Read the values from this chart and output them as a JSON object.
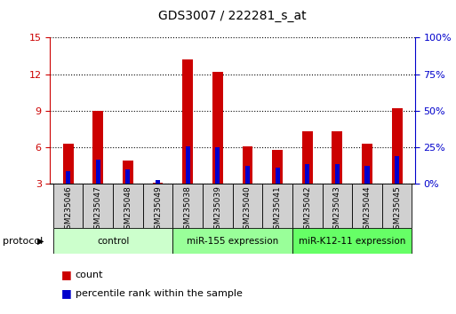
{
  "title": "GDS3007 / 222281_s_at",
  "samples": [
    "GSM235046",
    "GSM235047",
    "GSM235048",
    "GSM235049",
    "GSM235038",
    "GSM235039",
    "GSM235040",
    "GSM235041",
    "GSM235042",
    "GSM235043",
    "GSM235044",
    "GSM235045"
  ],
  "red_values": [
    6.3,
    9.0,
    4.9,
    3.1,
    13.2,
    12.2,
    6.1,
    5.8,
    7.3,
    7.3,
    6.3,
    9.2
  ],
  "blue_values": [
    4.0,
    5.0,
    4.2,
    3.3,
    6.1,
    6.0,
    4.5,
    4.3,
    4.6,
    4.6,
    4.5,
    5.3
  ],
  "red_color": "#cc0000",
  "blue_color": "#0000cc",
  "ylim_left": [
    3,
    15
  ],
  "ylim_right": [
    0,
    100
  ],
  "yticks_left": [
    3,
    6,
    9,
    12,
    15
  ],
  "yticks_right": [
    0,
    25,
    50,
    75,
    100
  ],
  "ytick_labels_right": [
    "0%",
    "25%",
    "50%",
    "75%",
    "100%"
  ],
  "group_labels": [
    "control",
    "miR-155 expression",
    "miR-K12-11 expression"
  ],
  "group_colors": [
    "#ccffcc",
    "#99ff99",
    "#66ff66"
  ],
  "group_boundaries": [
    0,
    4,
    8,
    12
  ],
  "bar_width": 0.35,
  "blue_bar_width": 0.15,
  "tick_color_left": "#cc0000",
  "tick_color_right": "#0000cc",
  "sample_box_color": "#d0d0d0",
  "legend_count_label": "count",
  "legend_pct_label": "percentile rank within the sample",
  "protocol_label": "protocol"
}
